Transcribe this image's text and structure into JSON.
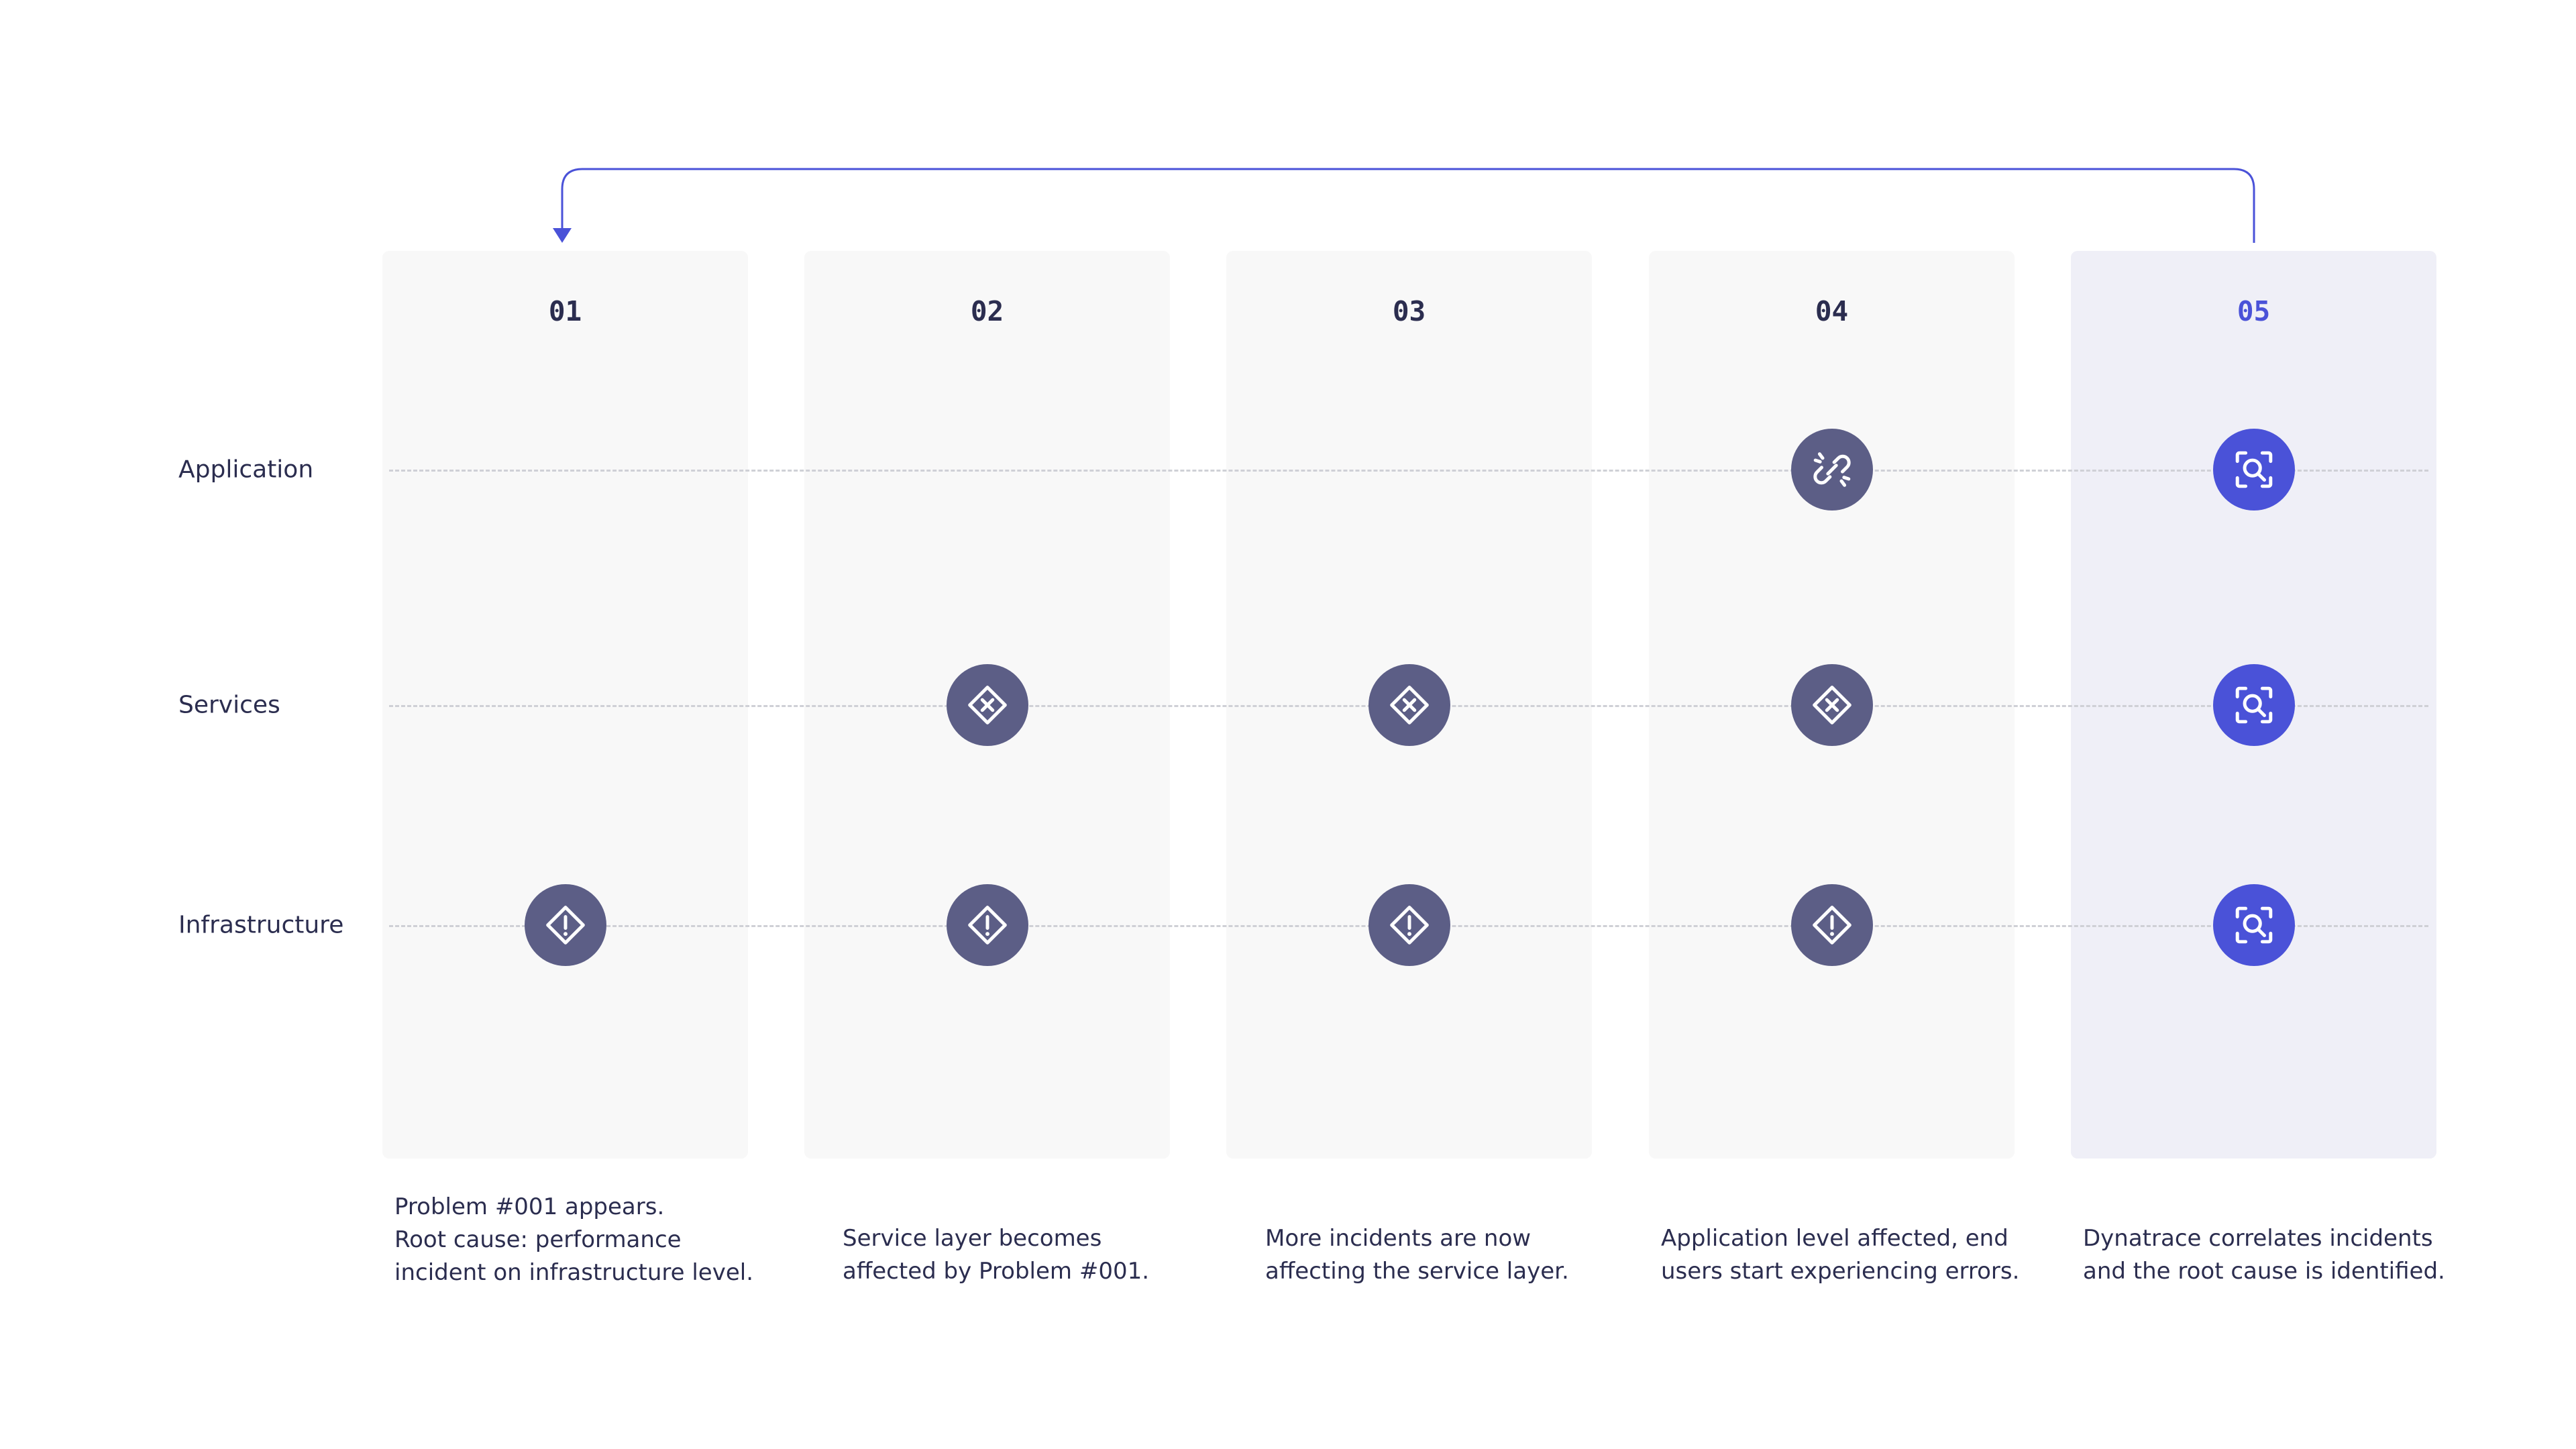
{
  "rows": [
    {
      "label": "Application"
    },
    {
      "label": "Services"
    },
    {
      "label": "Infrastructure"
    }
  ],
  "columns": [
    {
      "number": "01",
      "description": "Problem #001 appears.\nRoot cause: performance\nincident on infrastructure level."
    },
    {
      "number": "02",
      "description": "Service layer becomes\naffected by Problem #001."
    },
    {
      "number": "03",
      "description": "More incidents are now\naffecting the service layer."
    },
    {
      "number": "04",
      "description": "Application level affected, end\nusers start experiencing errors."
    },
    {
      "number": "05",
      "description": "Dynatrace correlates incidents\nand the root cause is identified."
    }
  ],
  "nodes": [
    {
      "column": 1,
      "row": 3,
      "icon": "warning-diamond-icon",
      "color": "#5c5e86"
    },
    {
      "column": 2,
      "row": 2,
      "icon": "error-diamond-icon",
      "color": "#5c5e86"
    },
    {
      "column": 2,
      "row": 3,
      "icon": "warning-diamond-icon",
      "color": "#5c5e86"
    },
    {
      "column": 3,
      "row": 2,
      "icon": "error-diamond-icon",
      "color": "#5c5e86"
    },
    {
      "column": 3,
      "row": 3,
      "icon": "warning-diamond-icon",
      "color": "#5c5e86"
    },
    {
      "column": 4,
      "row": 1,
      "icon": "broken-link-icon",
      "color": "#5c5e86"
    },
    {
      "column": 4,
      "row": 2,
      "icon": "error-diamond-icon",
      "color": "#5c5e86"
    },
    {
      "column": 4,
      "row": 3,
      "icon": "warning-diamond-icon",
      "color": "#5c5e86"
    },
    {
      "column": 5,
      "row": 1,
      "icon": "focus-search-icon",
      "color": "#4a52d8"
    },
    {
      "column": 5,
      "row": 2,
      "icon": "focus-search-icon",
      "color": "#4a52d8"
    },
    {
      "column": 5,
      "row": 3,
      "icon": "focus-search-icon",
      "color": "#4a52d8"
    }
  ],
  "colors": {
    "accent": "#4a52d8",
    "node": "#5c5e86",
    "text": "#2b2d4f",
    "column_bg": "#f8f8f8",
    "active_column_bg": "#efeff7"
  }
}
